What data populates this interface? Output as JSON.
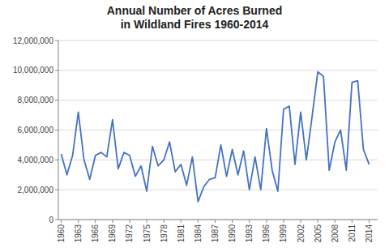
{
  "chart_data": {
    "type": "line",
    "title": "Annual Number of Acres Burned\nin Wildland Fires 1960-2014",
    "x": [
      1960,
      1961,
      1962,
      1963,
      1964,
      1965,
      1966,
      1967,
      1968,
      1969,
      1970,
      1971,
      1972,
      1973,
      1974,
      1975,
      1976,
      1977,
      1978,
      1979,
      1980,
      1981,
      1982,
      1983,
      1984,
      1985,
      1986,
      1987,
      1988,
      1989,
      1990,
      1991,
      1992,
      1993,
      1994,
      1995,
      1996,
      1997,
      1998,
      1999,
      2000,
      2001,
      2002,
      2003,
      2004,
      2005,
      2006,
      2007,
      2008,
      2009,
      2010,
      2011,
      2012,
      2013,
      2014
    ],
    "values": [
      4400000,
      3000000,
      4300000,
      7200000,
      4000000,
      2700000,
      4300000,
      4500000,
      4200000,
      6700000,
      3400000,
      4500000,
      4300000,
      2900000,
      3600000,
      1900000,
      4900000,
      3600000,
      4000000,
      5200000,
      3200000,
      3700000,
      2300000,
      4200000,
      1200000,
      2200000,
      2700000,
      2800000,
      5000000,
      2900000,
      4700000,
      3000000,
      4600000,
      2000000,
      4200000,
      2000000,
      6100000,
      3300000,
      1900000,
      7400000,
      7600000,
      3700000,
      7200000,
      4000000,
      6900000,
      9900000,
      9600000,
      3300000,
      5200000,
      6000000,
      3300000,
      9200000,
      9300000,
      4700000,
      3700000
    ],
    "color": "#4472C4",
    "xlim": [
      1959.5,
      2015.5
    ],
    "xticks": [
      1960,
      1963,
      1966,
      1969,
      1972,
      1975,
      1978,
      1981,
      1984,
      1987,
      1990,
      1993,
      1996,
      1999,
      2002,
      2005,
      2008,
      2011,
      2014
    ],
    "ylim": [
      0,
      12000000
    ],
    "yticks": [
      0,
      {
        "value": 2000000,
        "label": "2,000,000"
      },
      {
        "value": 4000000,
        "label": "4,000,000"
      },
      {
        "value": 6000000,
        "label": "6,000,000"
      },
      {
        "value": 8000000,
        "label": "8,000,000"
      },
      {
        "value": 10000000,
        "label": "10,000,000"
      },
      {
        "value": 12000000,
        "label": "12,000,000"
      }
    ],
    "grid": true
  }
}
